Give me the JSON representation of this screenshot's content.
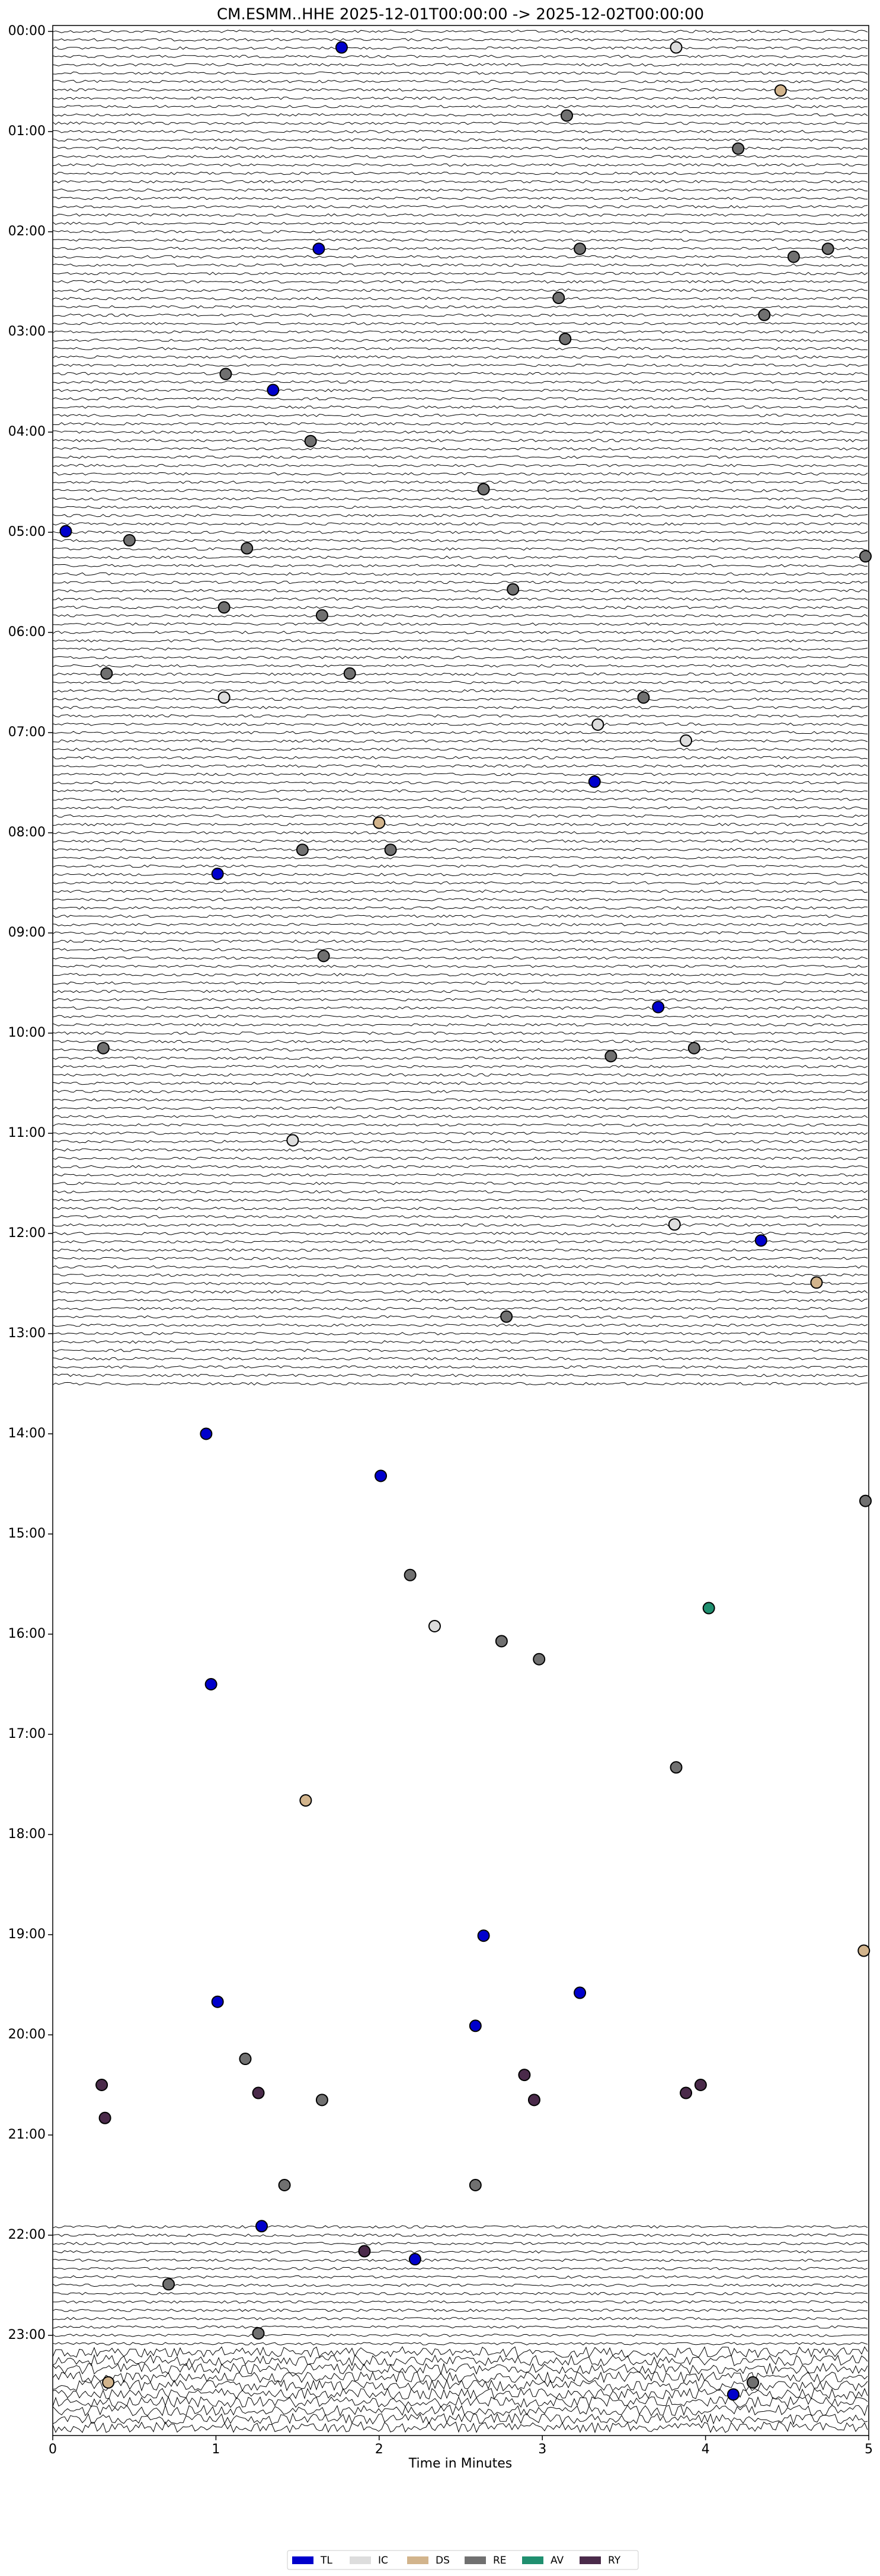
{
  "chart_data": {
    "type": "dayplot",
    "title": "CM.ESMM..HHE  2025-12-01T00:00:00 -> 2025-12-02T00:00:00",
    "x_label": "Time in Minutes",
    "xlim": [
      0,
      5
    ],
    "xticks": [
      0,
      1,
      2,
      3,
      4,
      5
    ],
    "ylim": [
      0,
      24
    ],
    "y_inverted": true,
    "yticks": [
      {
        "value": 0,
        "label": "00:00"
      },
      {
        "value": 1,
        "label": "01:00"
      },
      {
        "value": 2,
        "label": "02:00"
      },
      {
        "value": 3,
        "label": "03:00"
      },
      {
        "value": 4,
        "label": "04:00"
      },
      {
        "value": 5,
        "label": "05:00"
      },
      {
        "value": 6,
        "label": "06:00"
      },
      {
        "value": 7,
        "label": "07:00"
      },
      {
        "value": 8,
        "label": "08:00"
      },
      {
        "value": 9,
        "label": "09:00"
      },
      {
        "value": 10,
        "label": "10:00"
      },
      {
        "value": 11,
        "label": "11:00"
      },
      {
        "value": 12,
        "label": "12:00"
      },
      {
        "value": 13,
        "label": "13:00"
      },
      {
        "value": 14,
        "label": "14:00"
      },
      {
        "value": 15,
        "label": "15:00"
      },
      {
        "value": 16,
        "label": "16:00"
      },
      {
        "value": 17,
        "label": "17:00"
      },
      {
        "value": 18,
        "label": "18:00"
      },
      {
        "value": 19,
        "label": "19:00"
      },
      {
        "value": 20,
        "label": "20:00"
      },
      {
        "value": 21,
        "label": "21:00"
      },
      {
        "value": 22,
        "label": "22:00"
      },
      {
        "value": 23,
        "label": "23:00"
      }
    ],
    "legend_position": "bottom",
    "series": [
      {
        "name": "TL",
        "color": "#0000cc",
        "x": [
          1.77,
          1.63,
          1.35,
          0.08,
          3.32,
          1.01,
          3.71,
          4.34,
          0.94,
          2.01,
          0.97,
          2.64,
          1.01,
          3.23,
          2.59,
          1.28,
          2.22,
          4.17
        ],
        "values": [
          0.16,
          2.17,
          3.58,
          4.99,
          7.49,
          8.41,
          9.74,
          12.07,
          14.0,
          14.42,
          16.5,
          19.01,
          19.67,
          19.58,
          19.91,
          21.91,
          22.24,
          23.59
        ]
      },
      {
        "name": "IC",
        "color": "#dddddd",
        "x": [
          3.82,
          2.34,
          1.05,
          3.34,
          3.88,
          1.47,
          3.81
        ],
        "values": [
          0.16,
          15.92,
          6.65,
          6.92,
          7.08,
          11.07,
          11.91
        ]
      },
      {
        "name": "DS",
        "color": "#d2b48c",
        "x": [
          4.46,
          2.0,
          4.68,
          1.55,
          4.97,
          0.34
        ],
        "values": [
          0.59,
          7.9,
          12.49,
          17.66,
          19.16,
          23.47
        ]
      },
      {
        "name": "RE",
        "color": "#707070",
        "x": [
          3.15,
          4.2,
          3.23,
          4.54,
          4.75,
          3.1,
          4.36,
          3.14,
          1.06,
          1.58,
          2.64,
          0.47,
          1.19,
          4.98,
          2.82,
          1.05,
          1.65,
          0.33,
          1.82,
          3.62,
          1.53,
          2.07,
          1.66,
          0.31,
          3.93,
          3.42,
          2.78,
          4.98,
          2.19,
          2.75,
          2.98,
          3.82,
          1.18,
          1.65,
          1.42,
          2.59,
          0.71,
          1.26,
          4.29
        ],
        "values": [
          0.84,
          1.17,
          2.17,
          2.25,
          2.17,
          2.66,
          2.83,
          3.07,
          3.42,
          4.09,
          4.57,
          5.08,
          5.16,
          5.24,
          5.57,
          5.75,
          5.83,
          6.41,
          6.41,
          6.65,
          8.17,
          8.17,
          9.23,
          10.15,
          10.15,
          10.23,
          12.83,
          14.67,
          15.41,
          16.07,
          16.25,
          17.33,
          20.24,
          20.65,
          21.5,
          21.5,
          22.49,
          22.98,
          23.47
        ]
      },
      {
        "name": "AV",
        "color": "#1f8f6f",
        "x": [
          4.02
        ],
        "values": [
          15.74
        ]
      },
      {
        "name": "RY",
        "color": "#4a2a4a",
        "x": [
          0.3,
          0.32,
          1.26,
          2.89,
          2.95,
          3.88,
          3.97,
          1.91
        ],
        "values": [
          20.5,
          20.83,
          20.58,
          20.4,
          20.65,
          20.58,
          20.5,
          22.16
        ]
      }
    ]
  }
}
